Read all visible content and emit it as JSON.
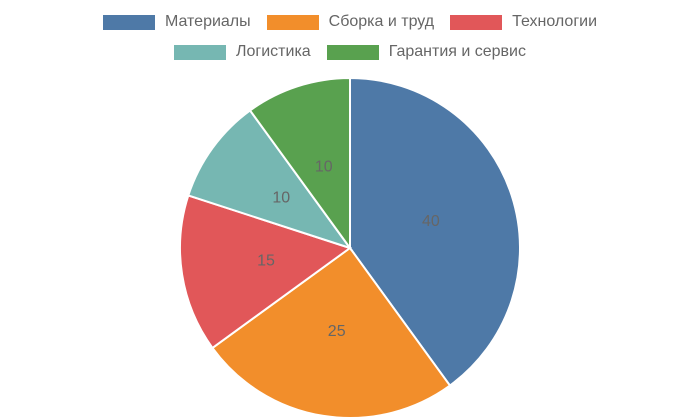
{
  "chart_data": {
    "type": "pie",
    "legend_position": "top",
    "categories": [
      "Материалы",
      "Сборка и труд",
      "Технологии",
      "Логистика",
      "Гарантия и сервис"
    ],
    "values": [
      40,
      25,
      15,
      10,
      10
    ],
    "data_labels": [
      "40",
      "25",
      "15",
      "10",
      "10"
    ],
    "colors": [
      "#4e79a7",
      "#f28e2b",
      "#e15759",
      "#76b7b2",
      "#59a14f"
    ]
  }
}
